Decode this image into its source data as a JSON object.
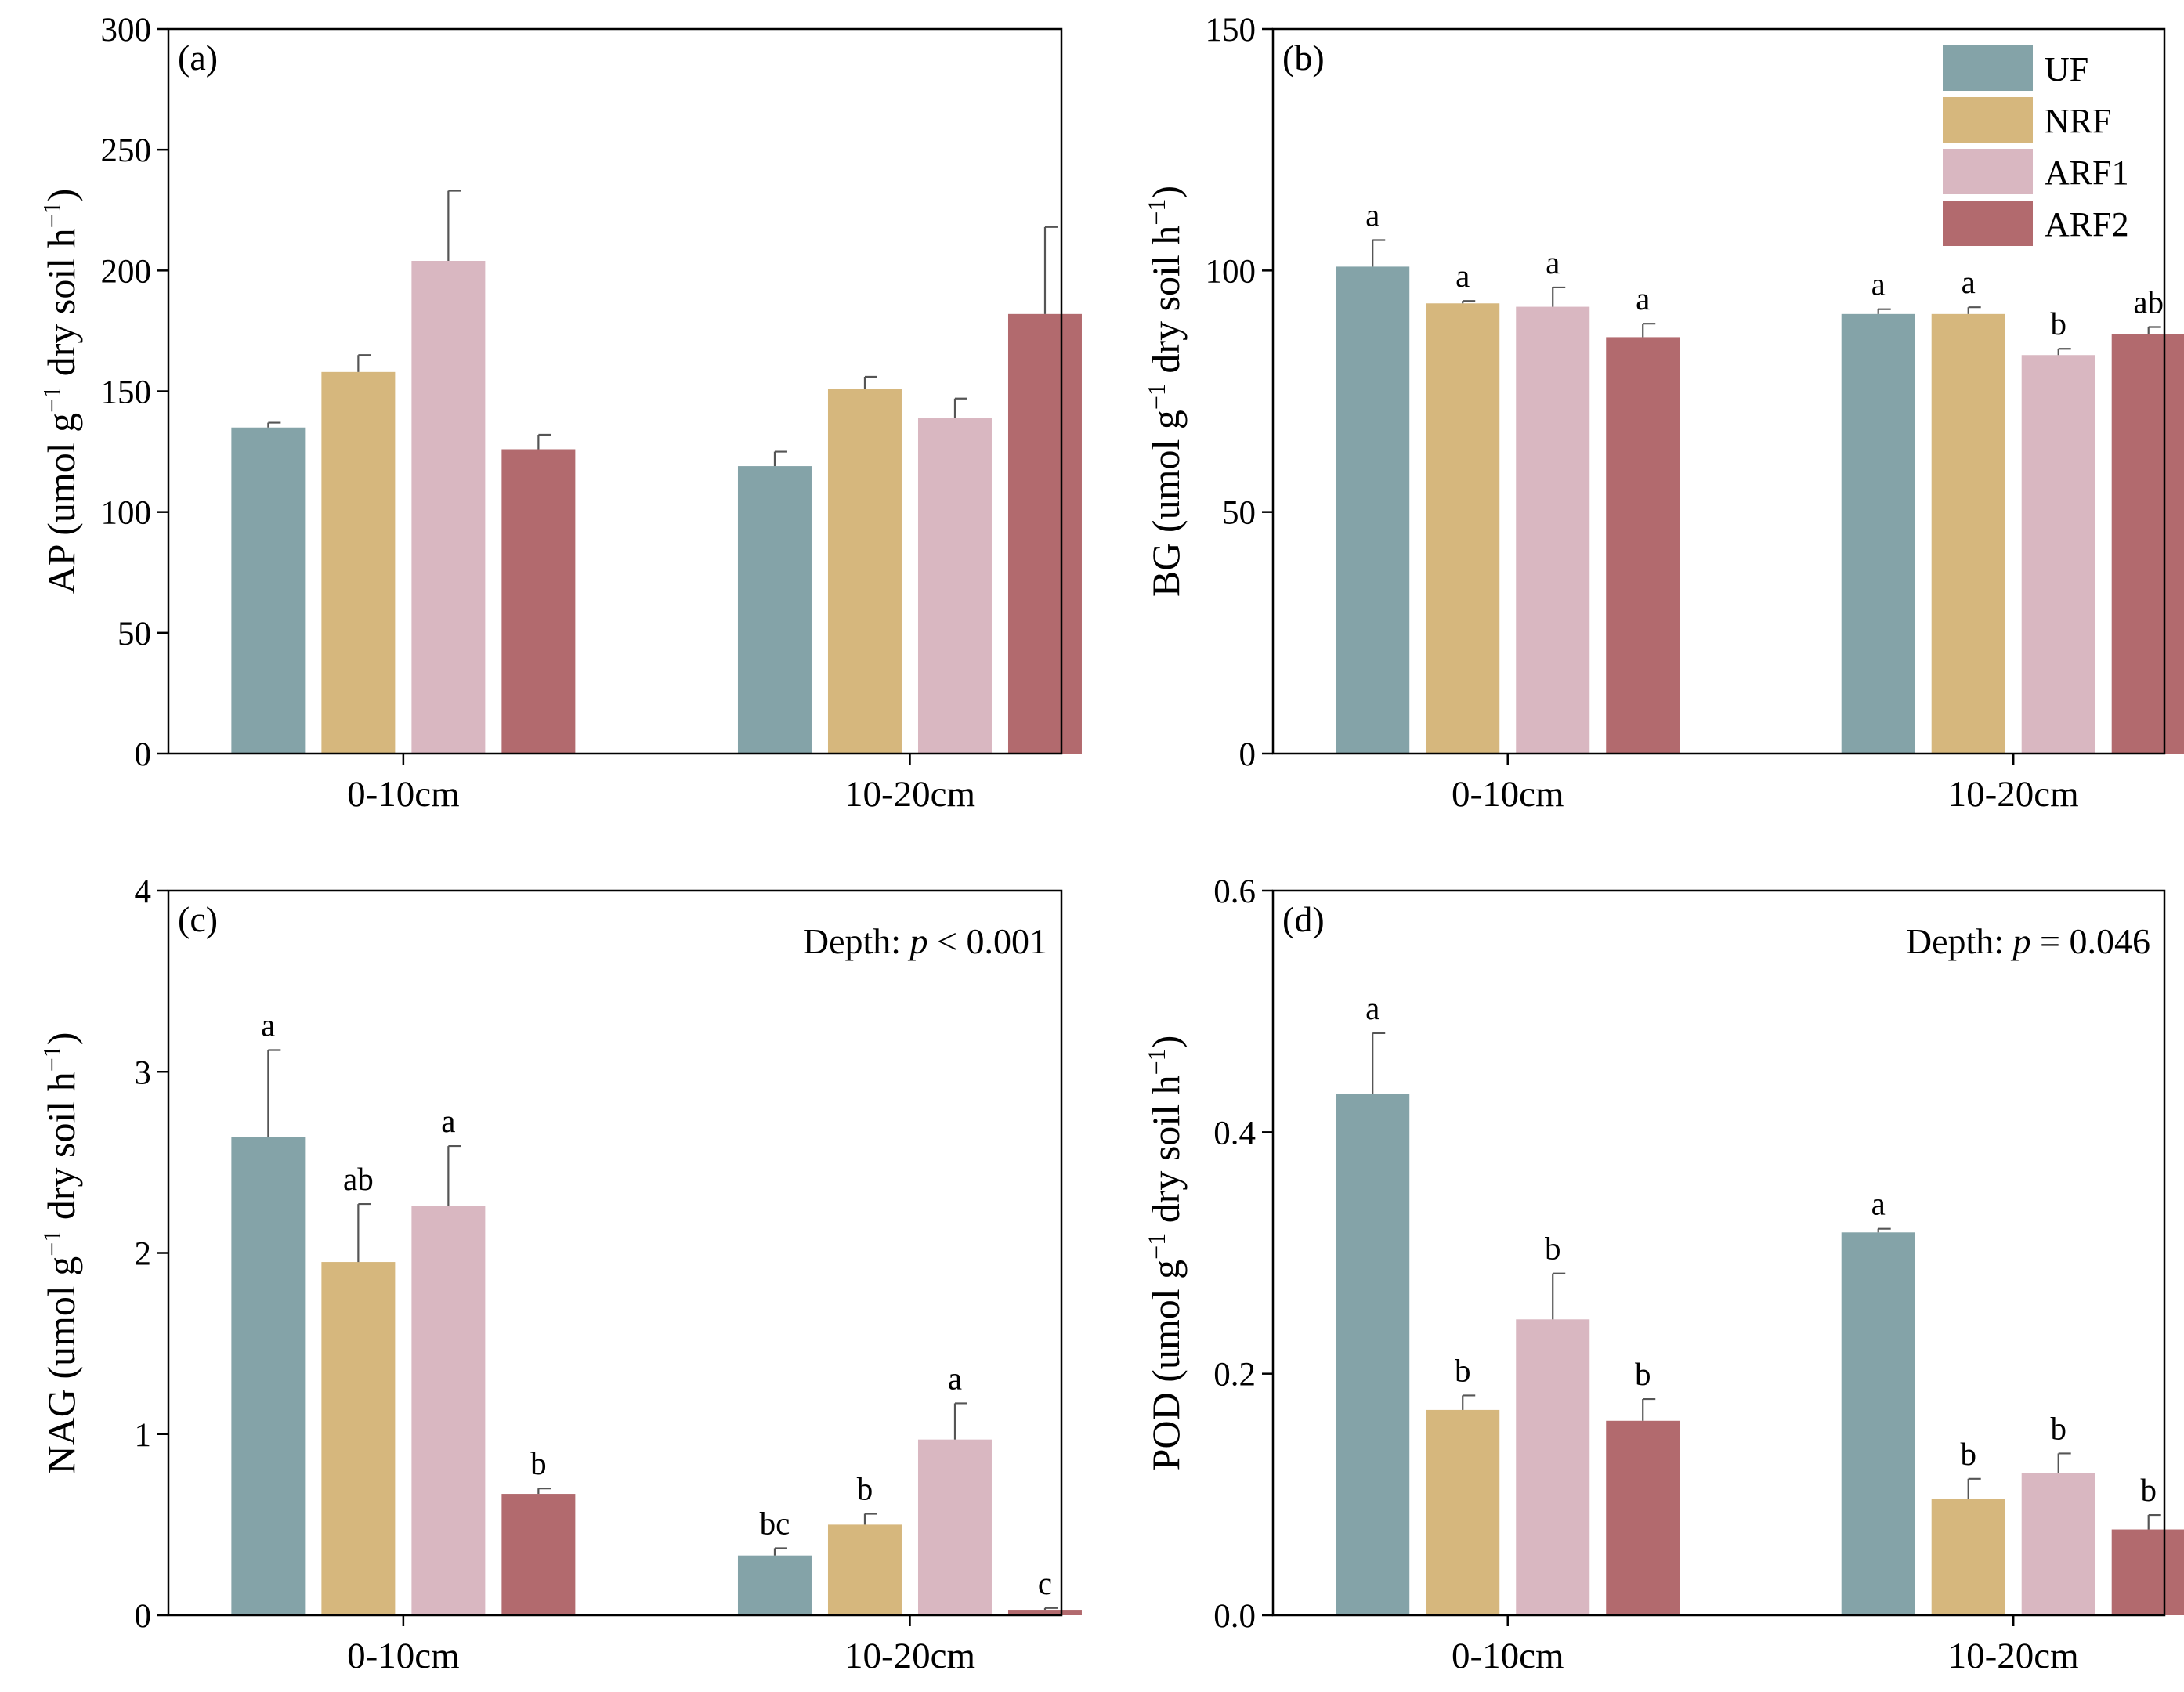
{
  "legend": [
    {
      "name": "UF",
      "color": "#84A3A8"
    },
    {
      "name": "NRF",
      "color": "#D6B77D"
    },
    {
      "name": "ARF1",
      "color": "#D9B7C1"
    },
    {
      "name": "ARF2",
      "color": "#B26A6E"
    }
  ],
  "chart_data": [
    {
      "type": "bar",
      "panel_label": "(a)",
      "ylabel_main": "AP (umol g",
      "ylabel_sup1": "−1",
      "ylabel_mid": " dry soil h",
      "ylabel_sup2": "−1",
      "ylabel_end": ")",
      "ylim": [
        0,
        300
      ],
      "yticks": [
        "0",
        "50",
        "100",
        "150",
        "200",
        "250",
        "300"
      ],
      "categories": [
        "0-10cm",
        "10-20cm"
      ],
      "series": [
        {
          "name": "UF",
          "values": [
            135,
            119
          ],
          "errors": [
            2,
            6
          ],
          "letters": [
            "",
            ""
          ]
        },
        {
          "name": "NRF",
          "values": [
            158,
            151
          ],
          "errors": [
            7,
            5
          ],
          "letters": [
            "",
            ""
          ]
        },
        {
          "name": "ARF1",
          "values": [
            204,
            139
          ],
          "errors": [
            29,
            8
          ],
          "letters": [
            "",
            ""
          ]
        },
        {
          "name": "ARF2",
          "values": [
            126,
            182
          ],
          "errors": [
            6,
            36
          ],
          "letters": [
            "",
            ""
          ]
        }
      ],
      "annotation_prefix": "",
      "annotation_p": "",
      "annotation_suffix": ""
    },
    {
      "type": "bar",
      "panel_label": "(b)",
      "ylabel_main": "BG (umol g",
      "ylabel_sup1": "−1",
      "ylabel_mid": " dry soil h",
      "ylabel_sup2": "−1",
      "ylabel_end": ")",
      "ylim": [
        0,
        150
      ],
      "yticks": [
        "0",
        "50",
        "100",
        "150"
      ],
      "categories": [
        "0-10cm",
        "10-20cm"
      ],
      "series": [
        {
          "name": "UF",
          "values": [
            100.8,
            91
          ],
          "errors": [
            5.5,
            1
          ],
          "letters": [
            "a",
            "a"
          ]
        },
        {
          "name": "NRF",
          "values": [
            93.2,
            91
          ],
          "errors": [
            0.5,
            1.4
          ],
          "letters": [
            "a",
            "a"
          ]
        },
        {
          "name": "ARF1",
          "values": [
            92.5,
            82.5
          ],
          "errors": [
            4,
            1.3
          ],
          "letters": [
            "a",
            "b"
          ]
        },
        {
          "name": "ARF2",
          "values": [
            86.2,
            86.8
          ],
          "errors": [
            2.8,
            1.5
          ],
          "letters": [
            "a",
            "ab"
          ]
        }
      ],
      "annotation_prefix": "",
      "annotation_p": "",
      "annotation_suffix": ""
    },
    {
      "type": "bar",
      "panel_label": "(c)",
      "ylabel_main": "NAG (umol g",
      "ylabel_sup1": "−1",
      "ylabel_mid": " dry soil h",
      "ylabel_sup2": "−1",
      "ylabel_end": ")",
      "ylim": [
        0,
        4
      ],
      "yticks": [
        "0",
        "1",
        "2",
        "3",
        "4"
      ],
      "categories": [
        "0-10cm",
        "10-20cm"
      ],
      "series": [
        {
          "name": "UF",
          "values": [
            2.64,
            0.33
          ],
          "errors": [
            0.48,
            0.04
          ],
          "letters": [
            "a",
            "bc"
          ]
        },
        {
          "name": "NRF",
          "values": [
            1.95,
            0.5
          ],
          "errors": [
            0.32,
            0.06
          ],
          "letters": [
            "ab",
            "b"
          ]
        },
        {
          "name": "ARF1",
          "values": [
            2.26,
            0.97
          ],
          "errors": [
            0.33,
            0.2
          ],
          "letters": [
            "a",
            "a"
          ]
        },
        {
          "name": "ARF2",
          "values": [
            0.67,
            0.03
          ],
          "errors": [
            0.03,
            0.01
          ],
          "letters": [
            "b",
            "c"
          ]
        }
      ],
      "annotation_prefix": "Depth: ",
      "annotation_p": "p",
      "annotation_suffix": " < 0.001"
    },
    {
      "type": "bar",
      "panel_label": "(d)",
      "ylabel_main": "POD (umol g",
      "ylabel_sup1": "−1",
      "ylabel_mid": " dry soil h",
      "ylabel_sup2": "−1",
      "ylabel_end": ")",
      "ylim": [
        0,
        0.6
      ],
      "yticks": [
        "0.0",
        "0.2",
        "0.4",
        "0.6"
      ],
      "categories": [
        "0-10cm",
        "10-20cm"
      ],
      "series": [
        {
          "name": "UF",
          "values": [
            0.432,
            0.317
          ],
          "errors": [
            0.05,
            0.003
          ],
          "letters": [
            "a",
            "a"
          ]
        },
        {
          "name": "NRF",
          "values": [
            0.17,
            0.096
          ],
          "errors": [
            0.012,
            0.017
          ],
          "letters": [
            "b",
            "b"
          ]
        },
        {
          "name": "ARF1",
          "values": [
            0.245,
            0.118
          ],
          "errors": [
            0.038,
            0.016
          ],
          "letters": [
            "b",
            "b"
          ]
        },
        {
          "name": "ARF2",
          "values": [
            0.161,
            0.071
          ],
          "errors": [
            0.018,
            0.012
          ],
          "letters": [
            "b",
            "b"
          ]
        }
      ],
      "annotation_prefix": "Depth: ",
      "annotation_p": "p",
      "annotation_suffix": " = 0.046"
    }
  ]
}
